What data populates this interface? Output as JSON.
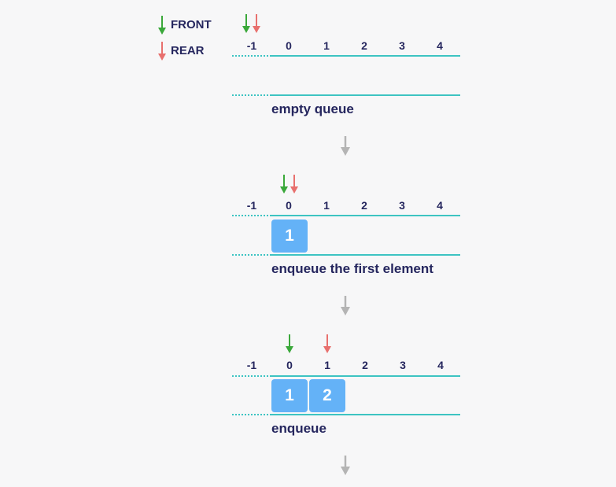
{
  "colors": {
    "front": "#3aa83a",
    "rear": "#e8706e",
    "line": "#3dc4c2",
    "cell": "#64b2f7",
    "flow_arrow": "#b4b4b4",
    "text": "#25265e"
  },
  "legend": {
    "front_label": "FRONT",
    "rear_label": "REAR"
  },
  "indices": [
    "-1",
    "0",
    "1",
    "2",
    "3",
    "4"
  ],
  "steps": [
    {
      "caption": "empty queue",
      "front_index": "-1",
      "rear_index": "-1",
      "cells": []
    },
    {
      "caption": "enqueue the first element",
      "front_index": "0",
      "rear_index": "0",
      "cells": [
        "1"
      ]
    },
    {
      "caption": "enqueue",
      "front_index": "0",
      "rear_index": "1",
      "cells": [
        "1",
        "2"
      ]
    }
  ]
}
